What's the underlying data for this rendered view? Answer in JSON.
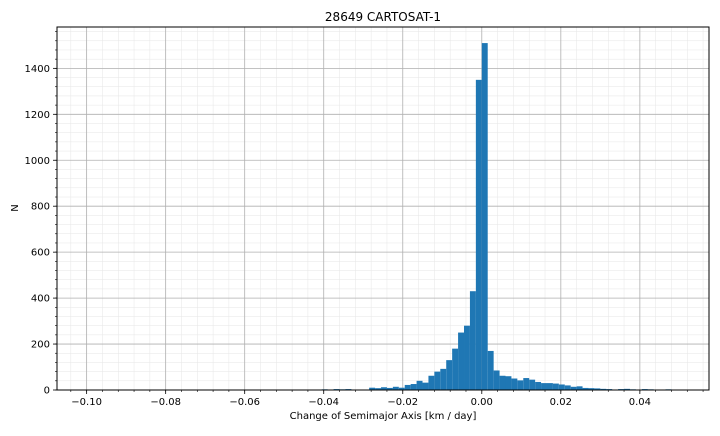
{
  "chart_data": {
    "type": "bar",
    "title": "28649 CARTOSAT-1",
    "xlabel": "Change of Semimajor Axis [km / day]",
    "ylabel": "N",
    "xlim": [
      -0.1075,
      0.0575
    ],
    "ylim": [
      0,
      1580
    ],
    "grid": true,
    "minor_grid": true,
    "xticks": [
      -0.1,
      -0.08,
      -0.06,
      -0.04,
      -0.02,
      0.0,
      0.02,
      0.04
    ],
    "xtick_labels": [
      "−0.10",
      "−0.08",
      "−0.06",
      "−0.04",
      "−0.02",
      "0.00",
      "0.02",
      "0.04"
    ],
    "yticks": [
      0,
      200,
      400,
      600,
      800,
      1000,
      1200,
      1400
    ],
    "ytick_labels": [
      "0",
      "200",
      "400",
      "600",
      "800",
      "1000",
      "1200",
      "1400"
    ],
    "bar_color": "#1f77b4",
    "bin_width": 0.0015,
    "bin_left_edges": [
      -0.0405,
      -0.039,
      -0.0375,
      -0.036,
      -0.0345,
      -0.033,
      -0.0285,
      -0.027,
      -0.0255,
      -0.024,
      -0.0225,
      -0.021,
      -0.0195,
      -0.018,
      -0.0165,
      -0.015,
      -0.0135,
      -0.012,
      -0.0105,
      -0.009,
      -0.0075,
      -0.006,
      -0.0045,
      -0.003,
      -0.0015,
      0.0,
      0.0015,
      0.003,
      0.0045,
      0.006,
      0.0075,
      0.009,
      0.0105,
      0.012,
      0.0135,
      0.015,
      0.0165,
      0.018,
      0.0195,
      0.021,
      0.0225,
      0.024,
      0.0255,
      0.027,
      0.0285,
      0.03,
      0.0315,
      0.0345,
      0.036,
      0.0375,
      0.0405,
      0.042,
      0.0465
    ],
    "counts": [
      3,
      2,
      4,
      3,
      4,
      2,
      10,
      8,
      12,
      9,
      14,
      10,
      22,
      26,
      40,
      32,
      62,
      80,
      92,
      130,
      180,
      250,
      280,
      430,
      1350,
      1510,
      170,
      85,
      62,
      60,
      50,
      42,
      52,
      45,
      35,
      30,
      30,
      28,
      24,
      20,
      14,
      16,
      9,
      8,
      7,
      5,
      4,
      4,
      5,
      3,
      4,
      3,
      3
    ]
  }
}
